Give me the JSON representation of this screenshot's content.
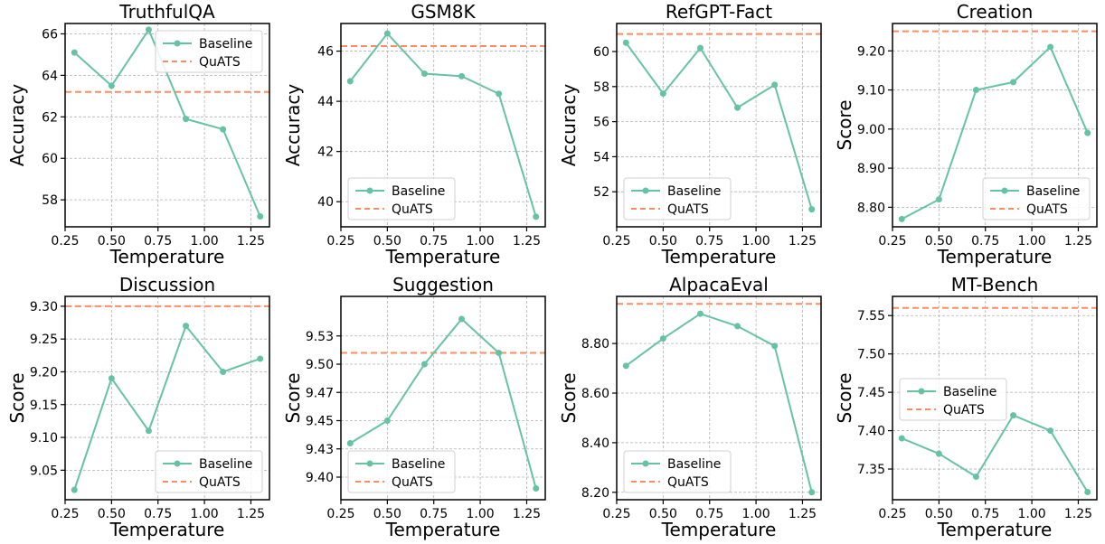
{
  "colors": {
    "baseline": "#66c2a5",
    "quats": "#fc8d62"
  },
  "chart_data": [
    {
      "type": "line",
      "title": "TruthfulQA",
      "xlabel": "Temperature",
      "ylabel": "Accuracy",
      "x": [
        0.3,
        0.5,
        0.7,
        0.9,
        1.1,
        1.3
      ],
      "xlim": [
        0.25,
        1.35
      ],
      "ylim": [
        56.7,
        66.5
      ],
      "xticks": [
        "0.25",
        "0.50",
        "0.75",
        "1.00",
        "1.25"
      ],
      "xtick_values": [
        0.25,
        0.5,
        0.75,
        1.0,
        1.25
      ],
      "yticks": [
        "58",
        "60",
        "62",
        "64",
        "66"
      ],
      "ytick_values": [
        58,
        60,
        62,
        64,
        66
      ],
      "series": [
        {
          "name": "Baseline",
          "values": [
            65.1,
            63.5,
            66.2,
            61.9,
            61.4,
            57.2
          ]
        },
        {
          "name": "QuATS",
          "hline": 63.2
        }
      ],
      "legend": "top-right",
      "grid": true
    },
    {
      "type": "line",
      "title": "GSM8K",
      "xlabel": "Temperature",
      "ylabel": "Accuracy",
      "x": [
        0.3,
        0.5,
        0.7,
        0.9,
        1.1,
        1.3
      ],
      "xlim": [
        0.25,
        1.35
      ],
      "ylim": [
        39.0,
        47.1
      ],
      "xticks": [
        "0.25",
        "0.50",
        "0.75",
        "1.00",
        "1.25"
      ],
      "xtick_values": [
        0.25,
        0.5,
        0.75,
        1.0,
        1.25
      ],
      "yticks": [
        "40",
        "42",
        "44",
        "46"
      ],
      "ytick_values": [
        40,
        42,
        44,
        46
      ],
      "series": [
        {
          "name": "Baseline",
          "values": [
            44.8,
            46.7,
            45.1,
            45.0,
            44.3,
            39.4
          ]
        },
        {
          "name": "QuATS",
          "hline": 46.2
        }
      ],
      "legend": "lower-left",
      "grid": true
    },
    {
      "type": "line",
      "title": "RefGPT-Fact",
      "xlabel": "Temperature",
      "ylabel": "Accuracy",
      "x": [
        0.3,
        0.5,
        0.7,
        0.9,
        1.1,
        1.3
      ],
      "xlim": [
        0.25,
        1.35
      ],
      "ylim": [
        50.0,
        61.6
      ],
      "xticks": [
        "0.25",
        "0.50",
        "0.75",
        "1.00",
        "1.25"
      ],
      "xtick_values": [
        0.25,
        0.5,
        0.75,
        1.0,
        1.25
      ],
      "yticks": [
        "52",
        "54",
        "56",
        "58",
        "60"
      ],
      "ytick_values": [
        52,
        54,
        56,
        58,
        60
      ],
      "series": [
        {
          "name": "Baseline",
          "values": [
            60.5,
            57.6,
            60.2,
            56.8,
            58.1,
            51.0
          ]
        },
        {
          "name": "QuATS",
          "hline": 61.0
        }
      ],
      "legend": "lower-left",
      "grid": true
    },
    {
      "type": "line",
      "title": "Creation",
      "xlabel": "Temperature",
      "ylabel": "Score",
      "x": [
        0.3,
        0.5,
        0.7,
        0.9,
        1.1,
        1.3
      ],
      "xlim": [
        0.25,
        1.35
      ],
      "ylim": [
        8.75,
        9.27
      ],
      "xticks": [
        "0.25",
        "0.50",
        "0.75",
        "1.00",
        "1.25"
      ],
      "xtick_values": [
        0.25,
        0.5,
        0.75,
        1.0,
        1.25
      ],
      "yticks": [
        "8.80",
        "8.90",
        "9.00",
        "9.10",
        "9.20"
      ],
      "ytick_values": [
        8.8,
        8.9,
        9.0,
        9.1,
        9.2
      ],
      "series": [
        {
          "name": "Baseline",
          "values": [
            8.77,
            8.82,
            9.1,
            9.12,
            9.21,
            8.99
          ]
        },
        {
          "name": "QuATS",
          "hline": 9.25
        }
      ],
      "legend": "lower-right",
      "grid": true
    },
    {
      "type": "line",
      "title": "Discussion",
      "xlabel": "Temperature",
      "ylabel": "Score",
      "x": [
        0.3,
        0.5,
        0.7,
        0.9,
        1.1,
        1.3
      ],
      "xlim": [
        0.25,
        1.35
      ],
      "ylim": [
        9.005,
        9.315
      ],
      "xticks": [
        "0.25",
        "0.50",
        "0.75",
        "1.00",
        "1.25"
      ],
      "xtick_values": [
        0.25,
        0.5,
        0.75,
        1.0,
        1.25
      ],
      "yticks": [
        "9.05",
        "9.10",
        "9.15",
        "9.20",
        "9.25",
        "9.30"
      ],
      "ytick_values": [
        9.05,
        9.1,
        9.15,
        9.2,
        9.25,
        9.3
      ],
      "series": [
        {
          "name": "Baseline",
          "values": [
            9.02,
            9.19,
            9.11,
            9.27,
            9.2,
            9.22
          ]
        },
        {
          "name": "QuATS",
          "hline": 9.3
        }
      ],
      "legend": "lower-right",
      "grid": true
    },
    {
      "type": "line",
      "title": "Suggestion",
      "xlabel": "Temperature",
      "ylabel": "Score",
      "x": [
        0.3,
        0.5,
        0.7,
        0.9,
        1.1,
        1.3
      ],
      "xlim": [
        0.25,
        1.35
      ],
      "ylim": [
        9.38,
        9.56
      ],
      "xticks": [
        "0.25",
        "0.50",
        "0.75",
        "1.00",
        "1.25"
      ],
      "xtick_values": [
        0.25,
        0.5,
        0.75,
        1.0,
        1.25
      ],
      "yticks": [
        "9.40",
        "9.43",
        "9.45",
        "9.47",
        "9.50",
        "9.53"
      ],
      "ytick_values": [
        9.4,
        9.425,
        9.45,
        9.475,
        9.5,
        9.525
      ],
      "series": [
        {
          "name": "Baseline",
          "values": [
            9.43,
            9.45,
            9.5,
            9.54,
            9.51,
            9.39
          ]
        },
        {
          "name": "QuATS",
          "hline": 9.51
        }
      ],
      "legend": "lower-left",
      "grid": true
    },
    {
      "type": "line",
      "title": "AlpacaEval",
      "xlabel": "Temperature",
      "ylabel": "Score",
      "x": [
        0.3,
        0.5,
        0.7,
        0.9,
        1.1,
        1.3
      ],
      "xlim": [
        0.25,
        1.35
      ],
      "ylim": [
        8.17,
        8.99
      ],
      "xticks": [
        "0.25",
        "0.50",
        "0.75",
        "1.00",
        "1.25"
      ],
      "xtick_values": [
        0.25,
        0.5,
        0.75,
        1.0,
        1.25
      ],
      "yticks": [
        "8.20",
        "8.40",
        "8.60",
        "8.80"
      ],
      "ytick_values": [
        8.2,
        8.4,
        8.6,
        8.8
      ],
      "series": [
        {
          "name": "Baseline",
          "values": [
            8.71,
            8.82,
            8.92,
            8.87,
            8.79,
            8.2
          ]
        },
        {
          "name": "QuATS",
          "hline": 8.96
        }
      ],
      "legend": "lower-left",
      "grid": true
    },
    {
      "type": "line",
      "title": "MT-Bench",
      "xlabel": "Temperature",
      "ylabel": "Score",
      "x": [
        0.3,
        0.5,
        0.7,
        0.9,
        1.1,
        1.3
      ],
      "xlim": [
        0.25,
        1.35
      ],
      "ylim": [
        7.31,
        7.575
      ],
      "xticks": [
        "0.25",
        "0.50",
        "0.75",
        "1.00",
        "1.25"
      ],
      "xtick_values": [
        0.25,
        0.5,
        0.75,
        1.0,
        1.25
      ],
      "yticks": [
        "7.35",
        "7.40",
        "7.45",
        "7.50",
        "7.55"
      ],
      "ytick_values": [
        7.35,
        7.4,
        7.45,
        7.5,
        7.55
      ],
      "series": [
        {
          "name": "Baseline",
          "values": [
            7.39,
            7.37,
            7.34,
            7.42,
            7.4,
            7.32
          ]
        },
        {
          "name": "QuATS",
          "hline": 7.56
        }
      ],
      "legend": "center-left",
      "grid": true
    }
  ]
}
